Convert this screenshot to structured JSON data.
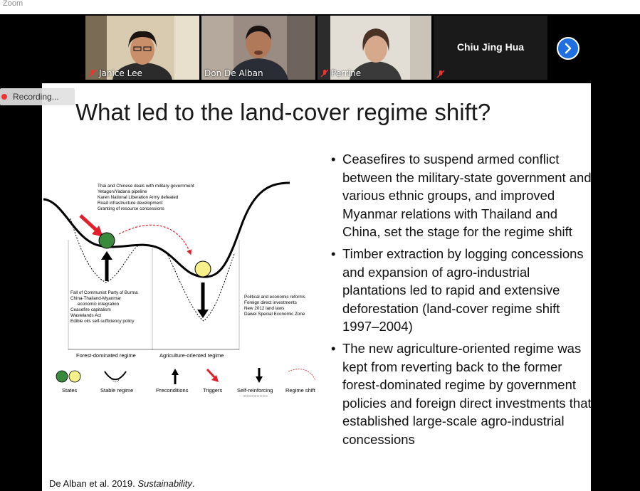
{
  "window": {
    "title": "Zoom"
  },
  "participants": [
    {
      "name": "Janice Lee",
      "muted": true
    },
    {
      "name": "Don De Alban",
      "muted": false
    },
    {
      "name": "Perrine",
      "muted": true
    },
    {
      "name": "Chiu Jing Hua",
      "muted": true
    }
  ],
  "recording": {
    "label": "Recording..."
  },
  "slide": {
    "title": "What led to the land-cover regime shift?",
    "diagram": {
      "trigger_text": [
        "Thai and Chinese deals with military government",
        "Yetagon/Yadana pipeline",
        "Karen National Liberation Army defeated",
        "Road infrastructure development",
        "Granting of resource concessions"
      ],
      "precondition_text": [
        "Fall of Communist Party of Burma",
        "China-Thailand-Myanmar",
        "economic integration",
        "Ceasefire capitalism",
        "Wastelands Act",
        "Edible oils self-sufficiency policy"
      ],
      "reinforcing_text": [
        "Political and economic reforms",
        "Foreign direct investments",
        "New 2012 land laws",
        "Dawei Special Economic Zone"
      ],
      "regime_left": "Forest-dominated regime",
      "regime_right": "Agriculture-oriented regime",
      "legend": {
        "states": "States",
        "stable": "Stable regime",
        "preconditions": "Preconditions",
        "triggers": "Triggers",
        "reinforcing_1": "Self-reinforcing",
        "reinforcing_2": "processes",
        "shift": "Regime shift"
      },
      "colors": {
        "green_ball": "#3a8a3e",
        "yellow_ball": "#f5f08a",
        "trigger_arrow": "#e0202a"
      }
    },
    "bullets": [
      "Ceasefires to suspend armed conflict between the military-state government and various ethnic groups, and improved Myanmar relations with Thailand and China, set the stage for the regime shift",
      "Timber extraction by logging concessions and expansion of agro-industrial plantations led to rapid and extensive deforestation (land-cover regime shift 1997–2004)",
      "The new agriculture-oriented regime was kept from reverting back to the former forest-dominated regime by government policies and foreign direct investments that established large-scale agro-industrial concessions"
    ],
    "citation": {
      "authors": "De Alban et al. 2019. ",
      "journal": "Sustainability",
      "end": "."
    }
  }
}
